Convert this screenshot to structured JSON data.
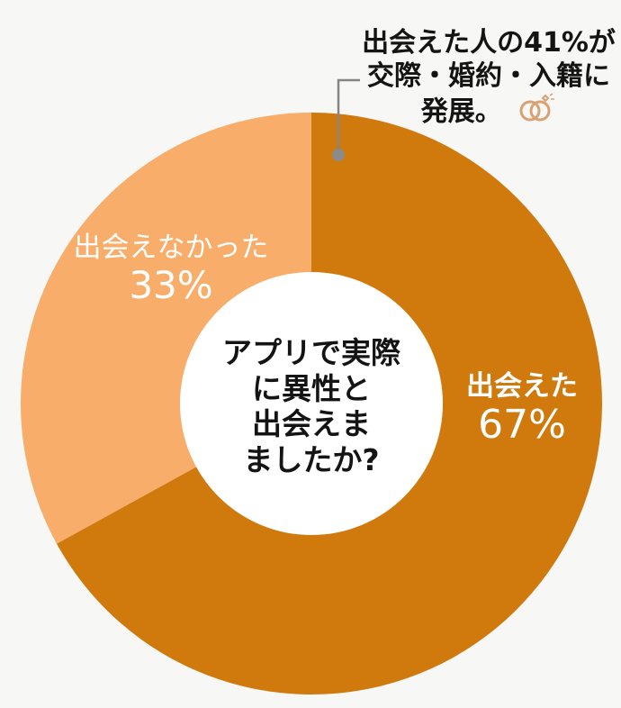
{
  "chart_data": {
    "type": "pie",
    "variant": "donut",
    "title": "アプリで実際に異性と出会えましたか?",
    "categories": [
      "出会えた",
      "出会えなかった"
    ],
    "values": [
      67,
      33
    ],
    "unit": "%",
    "colors": [
      "#d07a0e",
      "#f8ad6a"
    ],
    "annotations": [
      {
        "text": "出会えた人の41%が交際・婚約・入籍に発展。",
        "target": "出会えた",
        "value": 41
      }
    ],
    "legend": "none (labels on slices)"
  },
  "center_question": {
    "lines": [
      "アプリで実際",
      "に異性と",
      "出会えま",
      "ましたか?"
    ]
  },
  "slices": {
    "met": {
      "label": "出会えた",
      "percent": "67%"
    },
    "not_met": {
      "label": "出会えなかった",
      "percent": "33%"
    }
  },
  "callout": {
    "lines": [
      "出会えた人の41%が",
      "交際・婚約・入籍に",
      "発展。"
    ],
    "icon": "wedding-rings-icon"
  },
  "colors": {
    "background": "#f7f7f5",
    "met": "#d07a0e",
    "not_met": "#f8ad6a",
    "hole": "#ffffff",
    "leader": "#858585",
    "ring_icon": "#d9a072"
  }
}
